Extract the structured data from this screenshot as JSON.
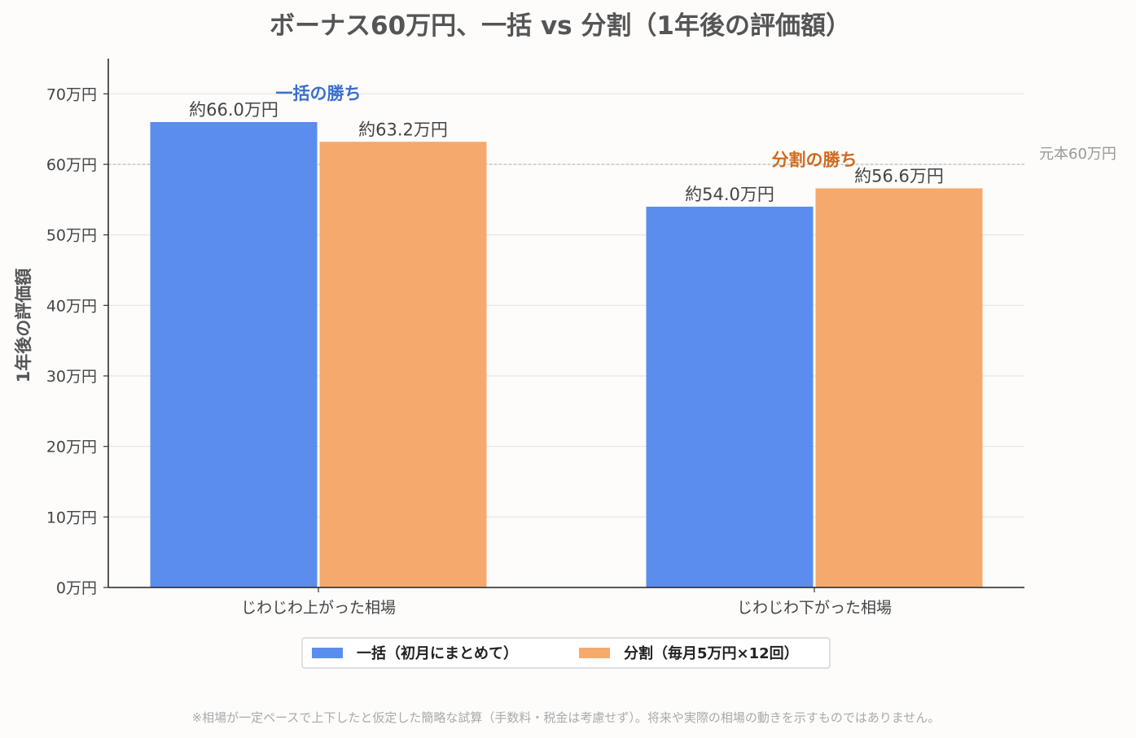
{
  "chart_data": {
    "type": "bar",
    "title": "ボーナス60万円、一括 vs 分割（1年後の評価額）",
    "ylabel": "1年後の評価額",
    "xlabel": "",
    "ylim": [
      0,
      75
    ],
    "yticks": [
      0,
      10,
      20,
      30,
      40,
      50,
      60,
      70
    ],
    "ytick_labels": [
      "0万円",
      "10万円",
      "20万円",
      "30万円",
      "40万円",
      "50万円",
      "60万円",
      "70万円"
    ],
    "categories": [
      "じわじわ上がった相場",
      "じわじわ下がった相場"
    ],
    "series": [
      {
        "name": "一括（初月にまとめて）",
        "color": "#5b8def",
        "values": [
          66.0,
          54.0
        ],
        "labels": [
          "約66.0万円",
          "約54.0万円"
        ]
      },
      {
        "name": "分割（毎月5万円×12回）",
        "color": "#f6a96c",
        "values": [
          63.2,
          56.6
        ],
        "labels": [
          "約63.2万円",
          "約56.6万円"
        ]
      }
    ],
    "reference_line": {
      "value": 60,
      "label": "元本60万円",
      "color": "#bbbbbb"
    },
    "annotations": [
      {
        "text": "一括の勝ち",
        "category_index": 0,
        "color": "#3a6fcf"
      },
      {
        "text": "分割の勝ち",
        "category_index": 1,
        "color": "#cf6a1f"
      }
    ],
    "grid": true,
    "legend_position": "bottom-center",
    "footnote": "※相場が一定ペースで上下したと仮定した簡略な試算（手数料・税金は考慮せず）。将来や実際の相場の動きを示すものではありません。"
  }
}
